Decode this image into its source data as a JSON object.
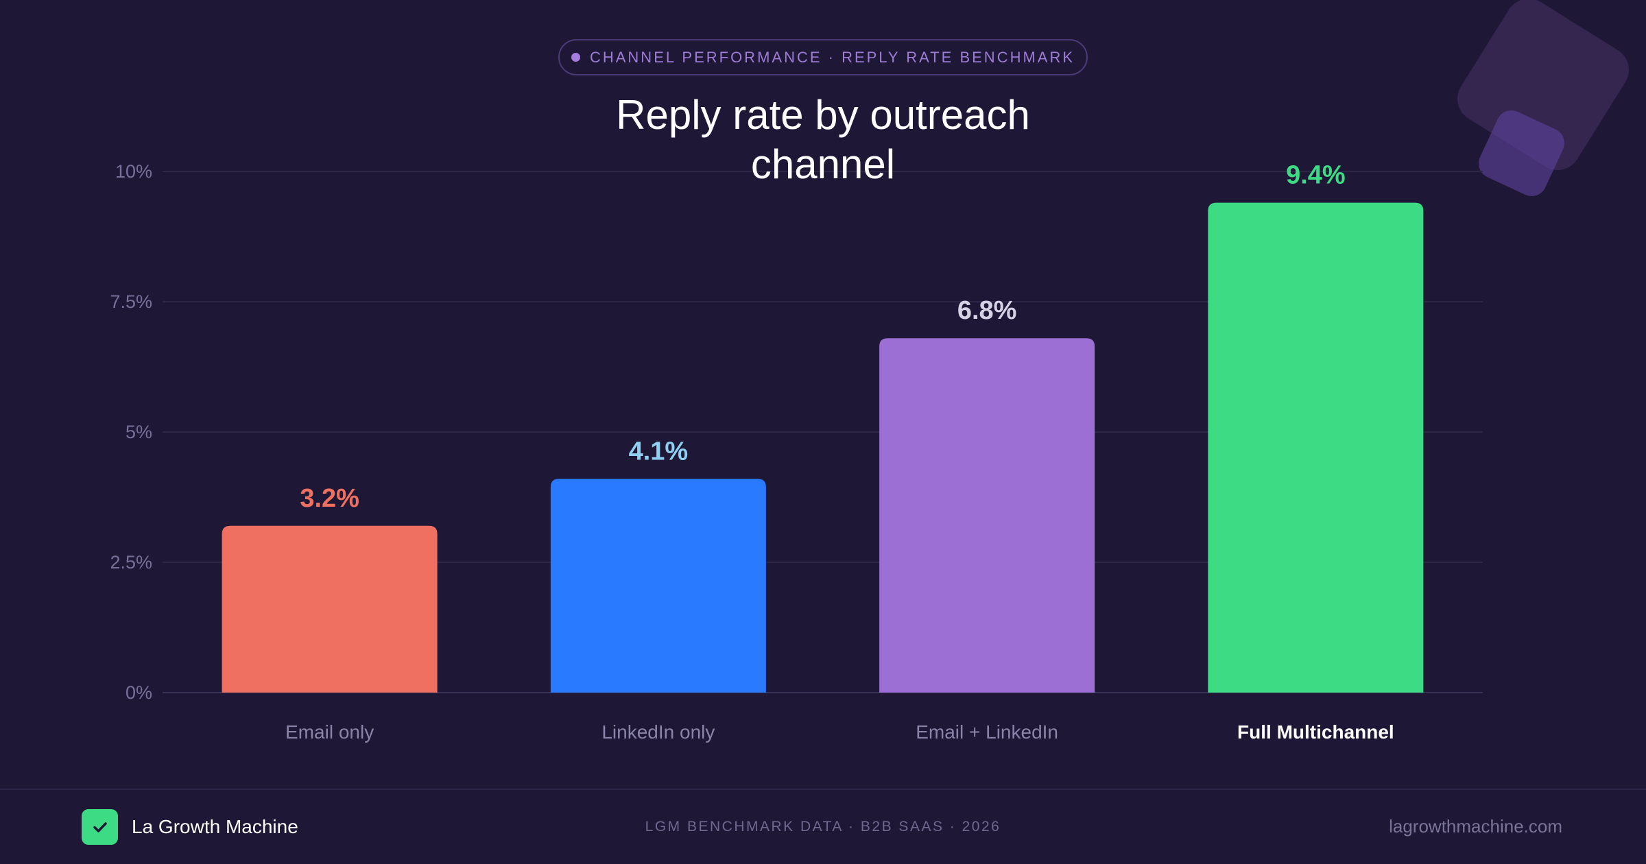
{
  "header": {
    "eyebrow": "CHANNEL PERFORMANCE · REPLY RATE BENCHMARK",
    "title": "Reply rate by outreach channel"
  },
  "chart_data": {
    "type": "bar",
    "title": "Reply rate by outreach channel",
    "categories": [
      "Email only",
      "LinkedIn only",
      "Email + LinkedIn",
      "Full Multichannel"
    ],
    "values": [
      3.2,
      4.1,
      6.8,
      9.4
    ],
    "data_labels": [
      "3.2%",
      "4.1%",
      "6.8%",
      "9.4%"
    ],
    "colors": [
      "#ef7061",
      "#2a7aff",
      "#9b6fd4",
      "#3ddc84"
    ],
    "label_colors": [
      "#ef7061",
      "#8fd0f2",
      "#d6d2e6",
      "#3ddc84"
    ],
    "yticks": [
      0,
      2.5,
      5,
      7.5,
      10
    ],
    "ytick_labels": [
      "0%",
      "2.5%",
      "5%",
      "7.5%",
      "10%"
    ],
    "ylim": [
      0,
      10
    ],
    "xlabel": "",
    "ylabel": "",
    "grid": true,
    "highlighted_category": "Full Multichannel"
  },
  "footer": {
    "brand": "La Growth Machine",
    "source": "LGM BENCHMARK DATA · B2B SAAS · 2026",
    "url": "lagrowthmachine.com"
  },
  "colors": {
    "background": "#1e1836",
    "accent": "#9b6fd4",
    "brand": "#3ddc84"
  }
}
